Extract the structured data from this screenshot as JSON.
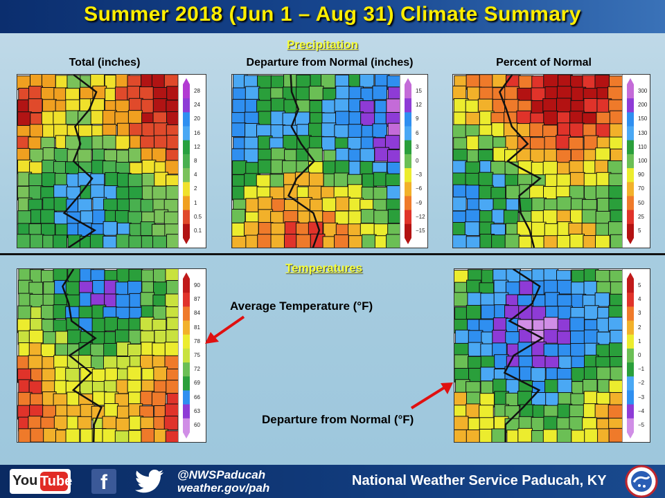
{
  "header": {
    "title": "Summer 2018 (Jun 1 – Aug 31) Climate Summary"
  },
  "sections": {
    "precipitation": "Precipitation",
    "temperatures": "Temperatures"
  },
  "maps": {
    "precip_total": {
      "label": "Total (inches)",
      "legend": [
        "28",
        "24",
        "20",
        "16",
        "12",
        "8",
        "4",
        "2",
        "1",
        "0.5",
        "0.1"
      ],
      "colors": [
        "#b23ad2",
        "#8e3bd6",
        "#2f8ff0",
        "#4aa8f4",
        "#28a040",
        "#49b04f",
        "#7ac25a",
        "#f0e12b",
        "#f0a020",
        "#e04a2b",
        "#b11414"
      ]
    },
    "precip_departure": {
      "label": "Departure from Normal (inches)",
      "legend": [
        "15",
        "12",
        "9",
        "6",
        "3",
        "0",
        "−3",
        "−6",
        "−9",
        "−12",
        "−15"
      ],
      "colors": [
        "#c46bd8",
        "#8e3bd6",
        "#2f8ff0",
        "#4aa8f4",
        "#2a9f3b",
        "#6bbf55",
        "#ecec2e",
        "#f2b12a",
        "#ef7a2a",
        "#e0332a",
        "#b31212"
      ]
    },
    "precip_percent": {
      "label": "Percent of Normal",
      "legend": [
        "300",
        "200",
        "150",
        "130",
        "110",
        "100",
        "90",
        "70",
        "50",
        "25",
        "5"
      ],
      "colors": [
        "#c46bd8",
        "#8e3bd6",
        "#2f8ff0",
        "#4aa8f4",
        "#2a9f3b",
        "#6bbf55",
        "#ecec2e",
        "#f2b12a",
        "#ef7a2a",
        "#e0332a",
        "#b31212"
      ]
    },
    "temp_average": {
      "annotation": "Average Temperature (°F)",
      "legend": [
        "90",
        "87",
        "84",
        "81",
        "78",
        "75",
        "72",
        "69",
        "66",
        "63",
        "60"
      ],
      "colors": [
        "#c01a1a",
        "#e0332a",
        "#ef7a2a",
        "#f2b12a",
        "#ecec2e",
        "#c9e23e",
        "#6bbf55",
        "#2a9f3b",
        "#2f8ff0",
        "#8e3bd6",
        "#d08ee6"
      ]
    },
    "temp_departure": {
      "annotation": "Departure from Normal (°F)",
      "legend": [
        "5",
        "4",
        "3",
        "2",
        "1",
        "0",
        "−1",
        "−2",
        "−3",
        "−4",
        "−5"
      ],
      "colors": [
        "#c01a1a",
        "#e0332a",
        "#ef7a2a",
        "#f2b12a",
        "#ecec2e",
        "#6bbf55",
        "#2a9f3b",
        "#4aa8f4",
        "#2f8ff0",
        "#8e3bd6",
        "#d08ee6"
      ]
    }
  },
  "footer": {
    "youtube_you": "You",
    "youtube_tube": "Tube",
    "facebook": "f",
    "handle": "@NWSPaducah",
    "website": "weather.gov/pah",
    "office": "National Weather Service Paducah, KY"
  },
  "colors": {
    "accent_yellow": "#ffee00",
    "header_blue": "#0b2e6e",
    "arrow_red": "#e01010"
  },
  "icons": [
    "youtube-logo",
    "facebook-icon",
    "twitter-icon",
    "nws-logo"
  ]
}
